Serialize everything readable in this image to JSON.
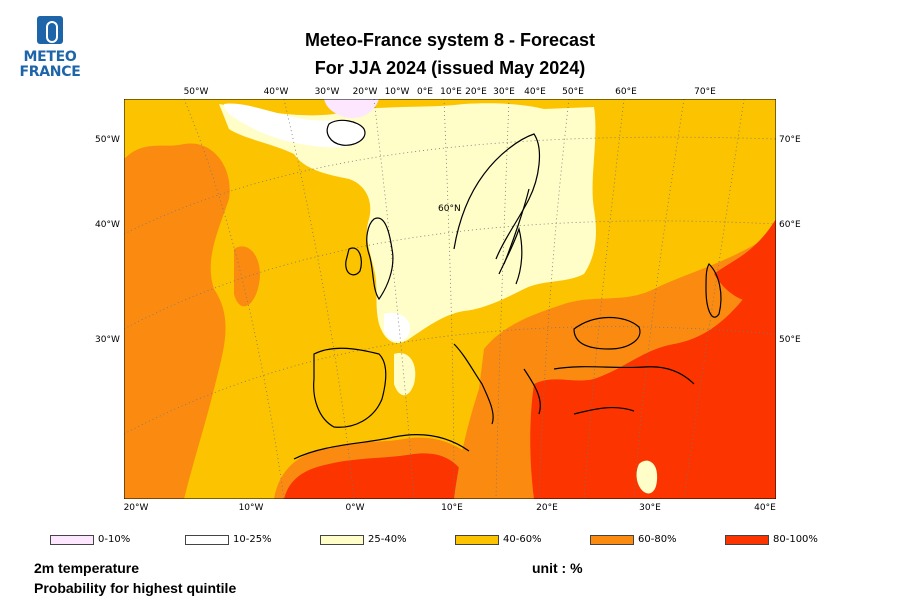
{
  "header": {
    "logo_text": [
      "METEO",
      "FRANCE"
    ],
    "title_line1": "Meteo-France system 8  -  Forecast",
    "title_line2": "For JJA 2024      (issued May 2024)"
  },
  "map": {
    "projection": "polar-stereographic",
    "top_lon_labels": [
      "50°W",
      "40°W",
      "30°W",
      "20°W",
      "10°W",
      "0°E",
      "10°E",
      "20°E",
      "30°E",
      "40°E",
      "50°E",
      "60°E",
      "70°E"
    ],
    "bottom_lon_labels": [
      "20°W",
      "10°W",
      "0°W",
      "10°E",
      "20°E",
      "30°E",
      "40°E"
    ],
    "left_lat_labels": [
      "50°W",
      "40°W",
      "30°W"
    ],
    "right_lat_labels": [
      "70°E",
      "60°E",
      "50°E"
    ],
    "inner_label": "60°N",
    "regions": {
      "background": "#fbc300",
      "atlantic_orange": "#fb8b10",
      "east_mediterranean_red": "#fb3400",
      "north_pale": "#fffdc8",
      "iceland_white": "#ffffff",
      "greenland_pink": "#fde7ff"
    }
  },
  "legend": [
    {
      "label": "0-10%",
      "color": "#fde7ff"
    },
    {
      "label": "10-25%",
      "color": "#ffffff"
    },
    {
      "label": "25-40%",
      "color": "#fffdc8"
    },
    {
      "label": "40-60%",
      "color": "#fbc300"
    },
    {
      "label": "60-80%",
      "color": "#fb8b10"
    },
    {
      "label": "80-100%",
      "color": "#fb3400"
    }
  ],
  "footer": {
    "variable": "2m temperature",
    "description": "Probability for highest quintile",
    "unit": "unit : %"
  }
}
